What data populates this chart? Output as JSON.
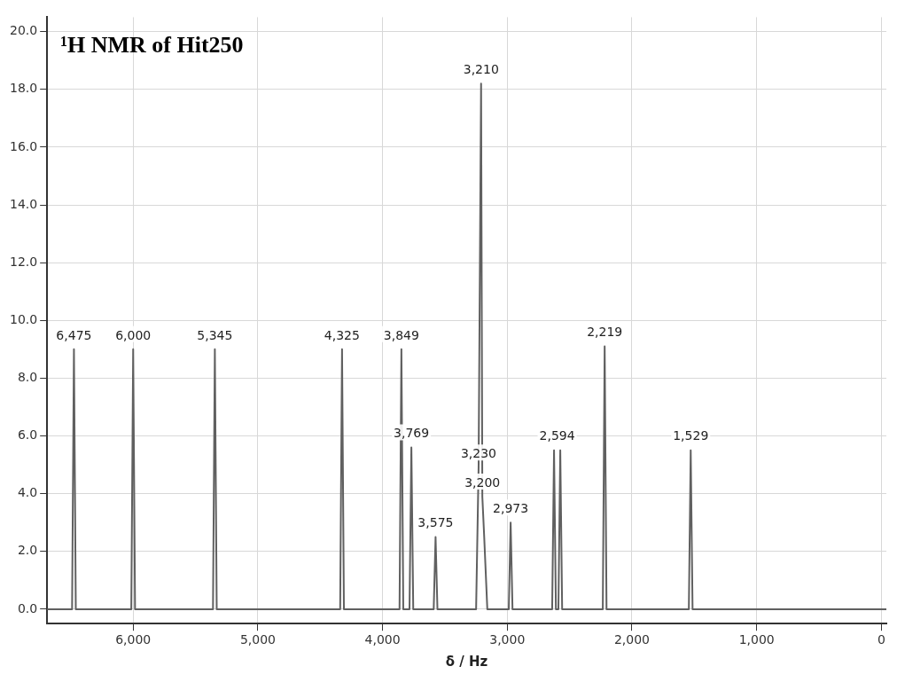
{
  "chart_data": {
    "type": "line",
    "title": "¹H NMR of Hit250",
    "xlabel": "δ / Hz",
    "xlim": [
      6690,
      -40
    ],
    "xticks": [
      {
        "value": 6000,
        "label": "6,000"
      },
      {
        "value": 5000,
        "label": "5,000"
      },
      {
        "value": 4000,
        "label": "4,000"
      },
      {
        "value": 3000,
        "label": "3,000"
      },
      {
        "value": 2000,
        "label": "2,000"
      },
      {
        "value": 1000,
        "label": "1,000"
      },
      0
    ],
    "ylim": [
      -0.5,
      20.5
    ],
    "yticks": [
      {
        "value": 0,
        "label": "0.0"
      },
      {
        "value": 2,
        "label": "2.0"
      },
      {
        "value": 4,
        "label": "4.0"
      },
      {
        "value": 6,
        "label": "6.0"
      },
      {
        "value": 8,
        "label": "8.0"
      },
      {
        "value": 10,
        "label": "10.0"
      },
      {
        "value": 12,
        "label": "12.0"
      },
      {
        "value": 14,
        "label": "14.0"
      },
      {
        "value": 16,
        "label": "16.0"
      },
      {
        "value": 18,
        "label": "18.0"
      },
      {
        "value": 20,
        "label": "20.0"
      }
    ],
    "grid": true,
    "line_style": "solid",
    "legend": false,
    "series": [
      {
        "color": "#606060",
        "x": [
          6690,
          6490,
          6475,
          6460,
          6015,
          6000,
          5985,
          5360,
          5345,
          5330,
          4340,
          4325,
          4310,
          3864,
          3849,
          3834,
          3784,
          3769,
          3754,
          3590,
          3575,
          3560,
          3250,
          3230,
          3210,
          3200,
          3185,
          3160,
          2988,
          2973,
          2958,
          2640,
          2625,
          2610,
          2590,
          2575,
          2560,
          2234,
          2219,
          2204,
          1544,
          1529,
          1514,
          -40
        ],
        "values": [
          0,
          0,
          9.0,
          0,
          0,
          9.0,
          0,
          0,
          9.0,
          0,
          0,
          9.0,
          0,
          0,
          9.0,
          0,
          0,
          5.6,
          0,
          0,
          2.5,
          0,
          0,
          4.9,
          18.2,
          3.9,
          2.5,
          0,
          0,
          3.0,
          0,
          0,
          5.5,
          0,
          0,
          5.5,
          0,
          0,
          9.1,
          0,
          0,
          5.5,
          0,
          0
        ]
      }
    ],
    "annotations": [
      {
        "text": "6,475",
        "x": 6475,
        "y": 9.0
      },
      {
        "text": "6,000",
        "x": 6000,
        "y": 9.0
      },
      {
        "text": "5,345",
        "x": 5345,
        "y": 9.0
      },
      {
        "text": "4,325",
        "x": 4325,
        "y": 9.0
      },
      {
        "text": "3,849",
        "x": 3849,
        "y": 9.0
      },
      {
        "text": "3,769",
        "x": 3769,
        "y": 5.6
      },
      {
        "text": "3,575",
        "x": 3575,
        "y": 2.5
      },
      {
        "text": "3,230",
        "x": 3230,
        "y": 4.9
      },
      {
        "text": "3,210",
        "x": 3210,
        "y": 18.2
      },
      {
        "text": "3,200",
        "x": 3200,
        "y": 3.9
      },
      {
        "text": "2,973",
        "x": 2973,
        "y": 3.0
      },
      {
        "text": "2,594",
        "x": 2600,
        "y": 5.5
      },
      {
        "text": "2,219",
        "x": 2219,
        "y": 9.1
      },
      {
        "text": "1,529",
        "x": 1529,
        "y": 5.5
      }
    ]
  }
}
